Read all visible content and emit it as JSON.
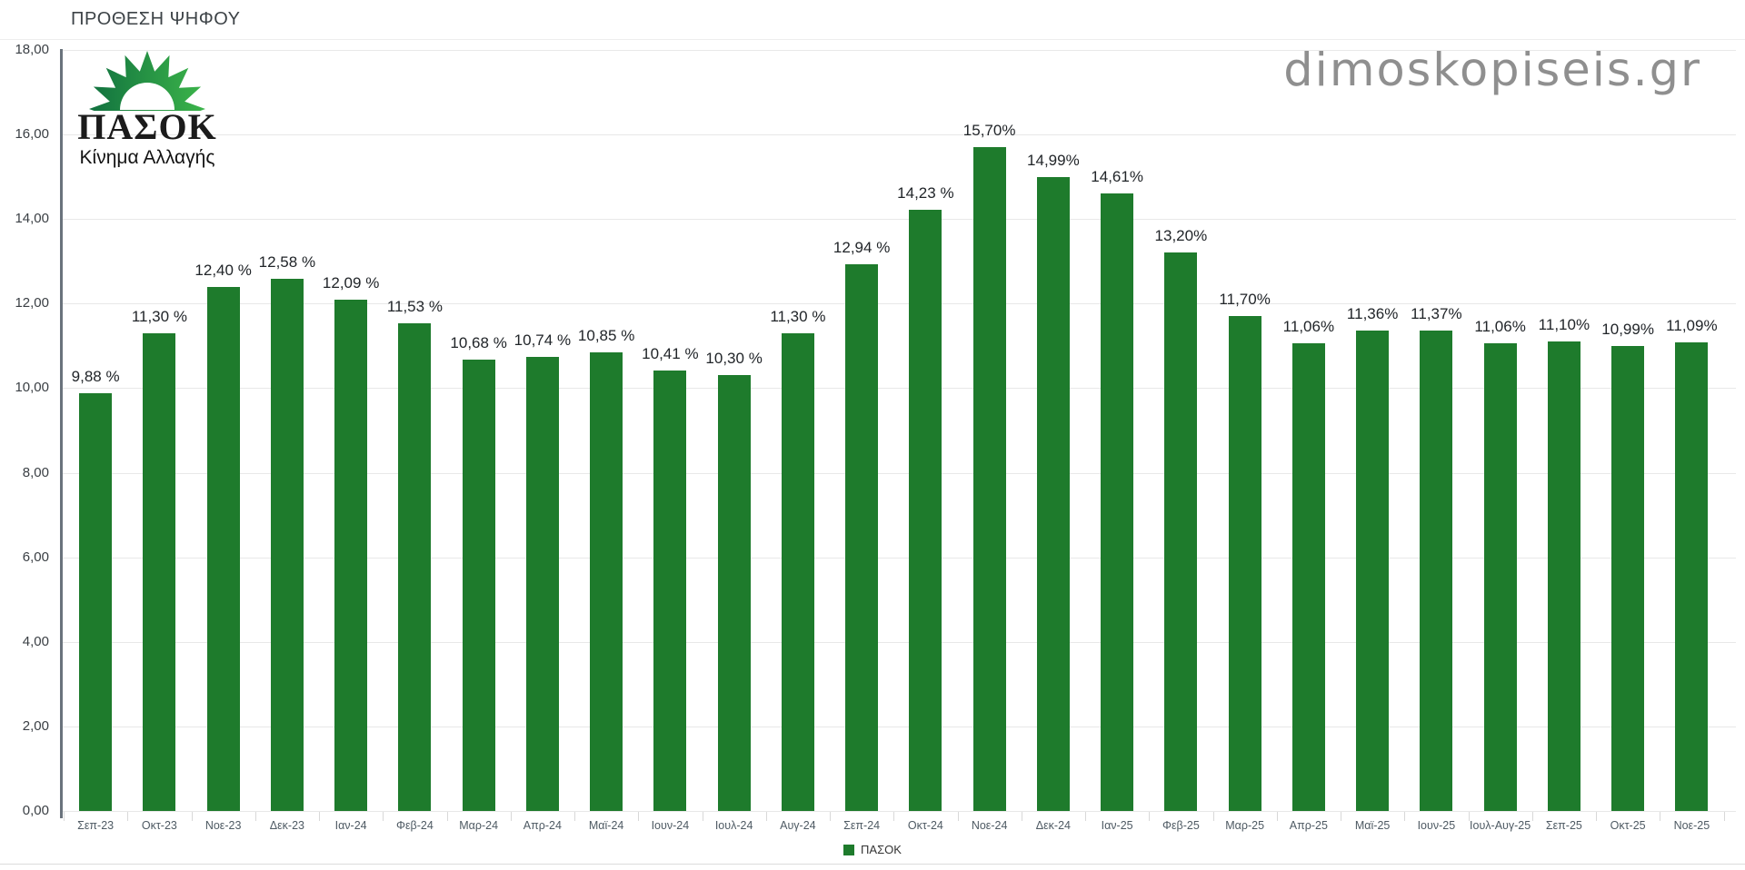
{
  "page": {
    "title": "ΠΡΟΘΕΣΗ ΨΗΦΟΥ",
    "watermark": "dimoskopiseis.gr"
  },
  "logo": {
    "name": "ΠΑΣΟΚ",
    "subtitle": "Κίνημα Αλλαγής",
    "sun_green_dark": "#11713f",
    "sun_green_light": "#3cb54a"
  },
  "legend": {
    "label": "ΠΑΣΟΚ",
    "swatch_color": "#1e7b2c"
  },
  "chart_data": {
    "type": "bar",
    "title": "ΠΡΟΘΕΣΗ ΨΗΦΟΥ",
    "series_name": "ΠΑΣΟΚ",
    "bar_color": "#1e7b2c",
    "categories": [
      "Σεπ-23",
      "Οκτ-23",
      "Νοε-23",
      "Δεκ-23",
      "Ιαν-24",
      "Φεβ-24",
      "Μαρ-24",
      "Απρ-24",
      "Μαϊ-24",
      "Ιουν-24",
      "Ιουλ-24",
      "Αυγ-24",
      "Σεπ-24",
      "Οκτ-24",
      "Νοε-24",
      "Δεκ-24",
      "Ιαν-25",
      "Φεβ-25",
      "Μαρ-25",
      "Απρ-25",
      "Μαϊ-25",
      "Ιουν-25",
      "Ιουλ-Αυγ-25",
      "Σεπ-25",
      "Οκτ-25",
      "Νοε-25"
    ],
    "values": [
      9.88,
      11.3,
      12.4,
      12.58,
      12.09,
      11.53,
      10.68,
      10.74,
      10.85,
      10.41,
      10.3,
      11.3,
      12.94,
      14.23,
      15.7,
      14.99,
      14.61,
      13.2,
      11.7,
      11.06,
      11.36,
      11.37,
      11.06,
      11.1,
      10.99,
      11.09
    ],
    "value_labels": [
      "9,88 %",
      "11,30 %",
      "12,40 %",
      "12,58 %",
      "12,09 %",
      "11,53 %",
      "10,68 %",
      "10,74 %",
      "10,85 %",
      "10,41 %",
      "10,30 %",
      "11,30 %",
      "12,94 %",
      "14,23 %",
      "15,70%",
      "14,99%",
      "14,61%",
      "13,20%",
      "11,70%",
      "11,06%",
      "11,36%",
      "11,37%",
      "11,06%",
      "11,10%",
      "10,99%",
      "11,09%"
    ],
    "ylim": [
      0,
      18
    ],
    "ytick_step": 2,
    "ytick_labels": [
      "0,00",
      "2,00",
      "4,00",
      "6,00",
      "8,00",
      "10,00",
      "12,00",
      "14,00",
      "16,00",
      "18,00"
    ],
    "grid": true,
    "legend_position": "bottom"
  }
}
